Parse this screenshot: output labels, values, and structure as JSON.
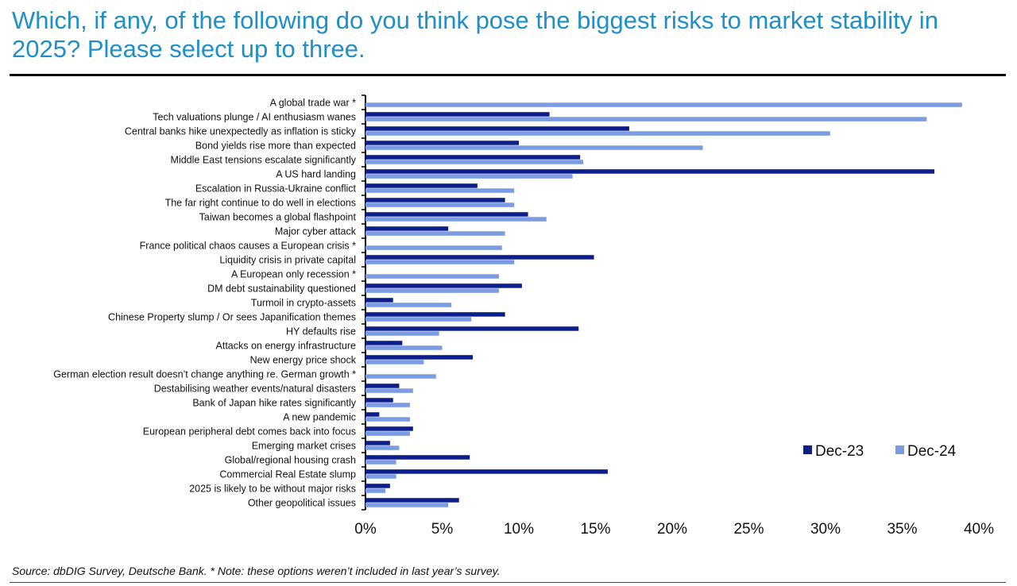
{
  "title": "Which, if any, of the following do you think pose the biggest risks to market stability in 2025? Please select up to three.",
  "source": "Source: dbDIG Survey, Deutsche Bank. * Note: these options weren’t included in last year’s survey.",
  "chart_data": {
    "type": "bar",
    "orientation": "horizontal",
    "categories": [
      "A global trade war *",
      "Tech valuations plunge / AI enthusiasm wanes",
      "Central banks hike unexpectedly as inflation is sticky",
      "Bond yields rise more than expected",
      "Middle East tensions escalate significantly",
      "A US hard landing",
      "Escalation in Russia-Ukraine conflict",
      "The far right continue to do well in elections",
      "Taiwan becomes a global flashpoint",
      "Major cyber attack",
      "France political chaos causes a European crisis *",
      "Liquidity crisis in private capital",
      "A European only recession *",
      "DM debt sustainability questioned",
      "Turmoil in crypto-assets",
      "Chinese Property slump / Or sees Japanification themes",
      "HY defaults rise",
      "Attacks on energy infrastructure",
      "New energy price shock",
      "German election result doesn’t change anything re. German growth *",
      "Destabilising weather events/natural disasters",
      "Bank of Japan hike rates significantly",
      "A new pandemic",
      "European peripheral debt comes back into focus",
      "Emerging market crises",
      "Global/regional housing crash",
      "Commercial Real Estate slump",
      "2025 is likely to be without major risks",
      "Other geopolitical issues"
    ],
    "series": [
      {
        "name": "Dec-23",
        "color": "#0c1e8c",
        "values": [
          null,
          12.0,
          17.2,
          10.0,
          14.0,
          37.1,
          7.3,
          9.1,
          10.6,
          5.4,
          null,
          14.9,
          null,
          10.2,
          1.8,
          9.1,
          13.9,
          2.4,
          7.0,
          null,
          2.2,
          1.8,
          0.9,
          3.1,
          1.6,
          6.8,
          15.8,
          1.6,
          6.1
        ]
      },
      {
        "name": "Dec-24",
        "color": "#7b9be3",
        "values": [
          38.9,
          36.6,
          30.3,
          22.0,
          14.2,
          13.5,
          9.7,
          9.7,
          11.8,
          9.1,
          8.9,
          9.7,
          8.7,
          8.7,
          5.6,
          6.9,
          4.8,
          5.0,
          3.8,
          4.6,
          3.1,
          2.9,
          2.9,
          2.9,
          2.2,
          2.0,
          2.0,
          1.3,
          5.4
        ]
      }
    ],
    "x_ticks": [
      "0%",
      "5%",
      "10%",
      "15%",
      "20%",
      "25%",
      "30%",
      "35%",
      "40%"
    ],
    "xlim": [
      0,
      40
    ],
    "legend_position": "bottom-right",
    "grid": false
  }
}
